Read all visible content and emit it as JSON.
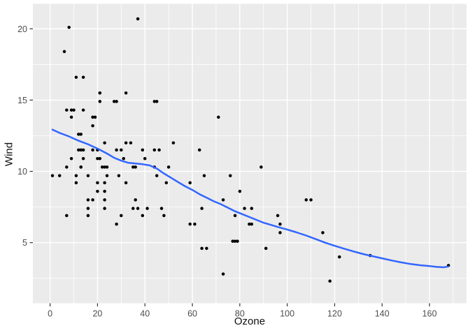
{
  "chart_data": {
    "type": "scatter",
    "title": "",
    "xlabel": "Ozone",
    "ylabel": "Wind",
    "legend": "none",
    "grid": true,
    "x_axis": {
      "label": "Ozone",
      "ticks": [
        0,
        20,
        40,
        60,
        80,
        100,
        120,
        140,
        160
      ],
      "minor_ticks": [
        10,
        30,
        50,
        70,
        90,
        110,
        130,
        150,
        170
      ],
      "domain": [
        -7.26,
        175.6
      ]
    },
    "y_axis": {
      "label": "Wind",
      "ticks": [
        5,
        10,
        15,
        20
      ],
      "minor_ticks": [
        2.5,
        7.5,
        12.5,
        17.5
      ],
      "domain": [
        0.75,
        21.75
      ]
    },
    "points": [
      [
        41,
        7.4
      ],
      [
        36,
        8
      ],
      [
        12,
        12.6
      ],
      [
        18,
        11.5
      ],
      [
        28,
        14.9
      ],
      [
        23,
        8.6
      ],
      [
        19,
        13.8
      ],
      [
        8,
        20.1
      ],
      [
        7,
        6.9
      ],
      [
        16,
        9.7
      ],
      [
        11,
        9.2
      ],
      [
        14,
        10.9
      ],
      [
        18,
        13.2
      ],
      [
        14,
        11.5
      ],
      [
        34,
        12
      ],
      [
        6,
        18.4
      ],
      [
        30,
        11.5
      ],
      [
        11,
        9.7
      ],
      [
        1,
        9.7
      ],
      [
        11,
        16.6
      ],
      [
        4,
        9.7
      ],
      [
        32,
        12
      ],
      [
        23,
        12
      ],
      [
        45,
        14.9
      ],
      [
        115,
        5.7
      ],
      [
        37,
        7.4
      ],
      [
        29,
        9.7
      ],
      [
        71,
        13.8
      ],
      [
        39,
        11.5
      ],
      [
        23,
        8
      ],
      [
        21,
        14.9
      ],
      [
        37,
        20.7
      ],
      [
        20,
        9.2
      ],
      [
        12,
        11.5
      ],
      [
        13,
        10.3
      ],
      [
        135,
        4.1
      ],
      [
        49,
        9.2
      ],
      [
        32,
        9.2
      ],
      [
        64,
        4.6
      ],
      [
        40,
        10.9
      ],
      [
        77,
        5.1
      ],
      [
        97,
        6.3
      ],
      [
        97,
        5.7
      ],
      [
        85,
        7.4
      ],
      [
        10,
        14.3
      ],
      [
        27,
        14.9
      ],
      [
        7,
        14.3
      ],
      [
        48,
        6.9
      ],
      [
        35,
        10.3
      ],
      [
        61,
        6.3
      ],
      [
        79,
        5.1
      ],
      [
        63,
        11.5
      ],
      [
        16,
        6.9
      ],
      [
        80,
        8.6
      ],
      [
        108,
        8
      ],
      [
        20,
        8.6
      ],
      [
        52,
        12
      ],
      [
        82,
        7.4
      ],
      [
        50,
        10.3
      ],
      [
        64,
        7.4
      ],
      [
        59,
        9.2
      ],
      [
        39,
        6.9
      ],
      [
        9,
        13.8
      ],
      [
        16,
        7.4
      ],
      [
        78,
        6.9
      ],
      [
        35,
        7.4
      ],
      [
        66,
        4.6
      ],
      [
        122,
        4
      ],
      [
        89,
        10.3
      ],
      [
        110,
        8
      ],
      [
        44,
        11.5
      ],
      [
        28,
        11.5
      ],
      [
        65,
        9.7
      ],
      [
        22,
        10.3
      ],
      [
        59,
        6.3
      ],
      [
        23,
        7.4
      ],
      [
        31,
        10.9
      ],
      [
        44,
        10.3
      ],
      [
        21,
        15.5
      ],
      [
        9,
        14.3
      ],
      [
        45,
        9.7
      ],
      [
        168,
        3.4
      ],
      [
        73,
        8
      ],
      [
        76,
        9.7
      ],
      [
        118,
        2.3
      ],
      [
        84,
        6.3
      ],
      [
        85,
        6.3
      ],
      [
        96,
        6.9
      ],
      [
        78,
        5.1
      ],
      [
        73,
        2.8
      ],
      [
        91,
        4.6
      ],
      [
        47,
        7.4
      ],
      [
        32,
        15.5
      ],
      [
        20,
        10.9
      ],
      [
        23,
        10.3
      ],
      [
        21,
        10.9
      ],
      [
        24,
        9.7
      ],
      [
        44,
        14.9
      ],
      [
        21,
        15.5
      ],
      [
        28,
        6.3
      ],
      [
        9,
        10.9
      ],
      [
        13,
        11.5
      ],
      [
        46,
        11.5
      ],
      [
        18,
        13.8
      ],
      [
        13,
        10.3
      ],
      [
        24,
        10.3
      ],
      [
        16,
        8
      ],
      [
        13,
        12.6
      ],
      [
        23,
        9.2
      ],
      [
        36,
        10.3
      ],
      [
        7,
        10.3
      ],
      [
        14,
        16.6
      ],
      [
        30,
        6.9
      ],
      [
        14,
        14.3
      ],
      [
        18,
        8
      ],
      [
        20,
        11.5
      ]
    ],
    "smooth_line": [
      [
        1,
        12.93
      ],
      [
        4,
        12.7
      ],
      [
        8,
        12.45
      ],
      [
        12,
        12.15
      ],
      [
        16,
        11.9
      ],
      [
        20,
        11.6
      ],
      [
        24,
        11.25
      ],
      [
        27,
        10.95
      ],
      [
        30,
        10.75
      ],
      [
        33,
        10.6
      ],
      [
        36,
        10.55
      ],
      [
        39,
        10.5
      ],
      [
        42,
        10.42
      ],
      [
        45,
        10.2
      ],
      [
        48,
        9.85
      ],
      [
        51,
        9.55
      ],
      [
        54,
        9.25
      ],
      [
        57,
        8.95
      ],
      [
        60,
        8.7
      ],
      [
        63,
        8.4
      ],
      [
        66,
        8.15
      ],
      [
        69,
        7.9
      ],
      [
        72,
        7.7
      ],
      [
        75,
        7.45
      ],
      [
        78,
        7.2
      ],
      [
        81,
        7.0
      ],
      [
        84,
        6.8
      ],
      [
        87,
        6.6
      ],
      [
        90,
        6.4
      ],
      [
        93,
        6.25
      ],
      [
        96,
        6.1
      ],
      [
        100,
        5.92
      ],
      [
        104,
        5.72
      ],
      [
        108,
        5.5
      ],
      [
        112,
        5.25
      ],
      [
        116,
        5.0
      ],
      [
        120,
        4.78
      ],
      [
        124,
        4.58
      ],
      [
        128,
        4.38
      ],
      [
        132,
        4.2
      ],
      [
        136,
        4.05
      ],
      [
        140,
        3.9
      ],
      [
        144,
        3.75
      ],
      [
        148,
        3.62
      ],
      [
        152,
        3.5
      ],
      [
        156,
        3.42
      ],
      [
        160,
        3.36
      ],
      [
        163,
        3.3
      ],
      [
        166,
        3.27
      ],
      [
        168,
        3.33
      ]
    ]
  },
  "style": {
    "panel_bg": "#EBEBEB",
    "grid_color": "#FFFFFF",
    "point_color": "#000000",
    "smooth_line_color": "#3366FF",
    "tick_label_color": "#4D4D4D",
    "tick_mark_color": "#333333",
    "axis_title_color": "#111111",
    "figure_bg": "#FFFFFF"
  }
}
